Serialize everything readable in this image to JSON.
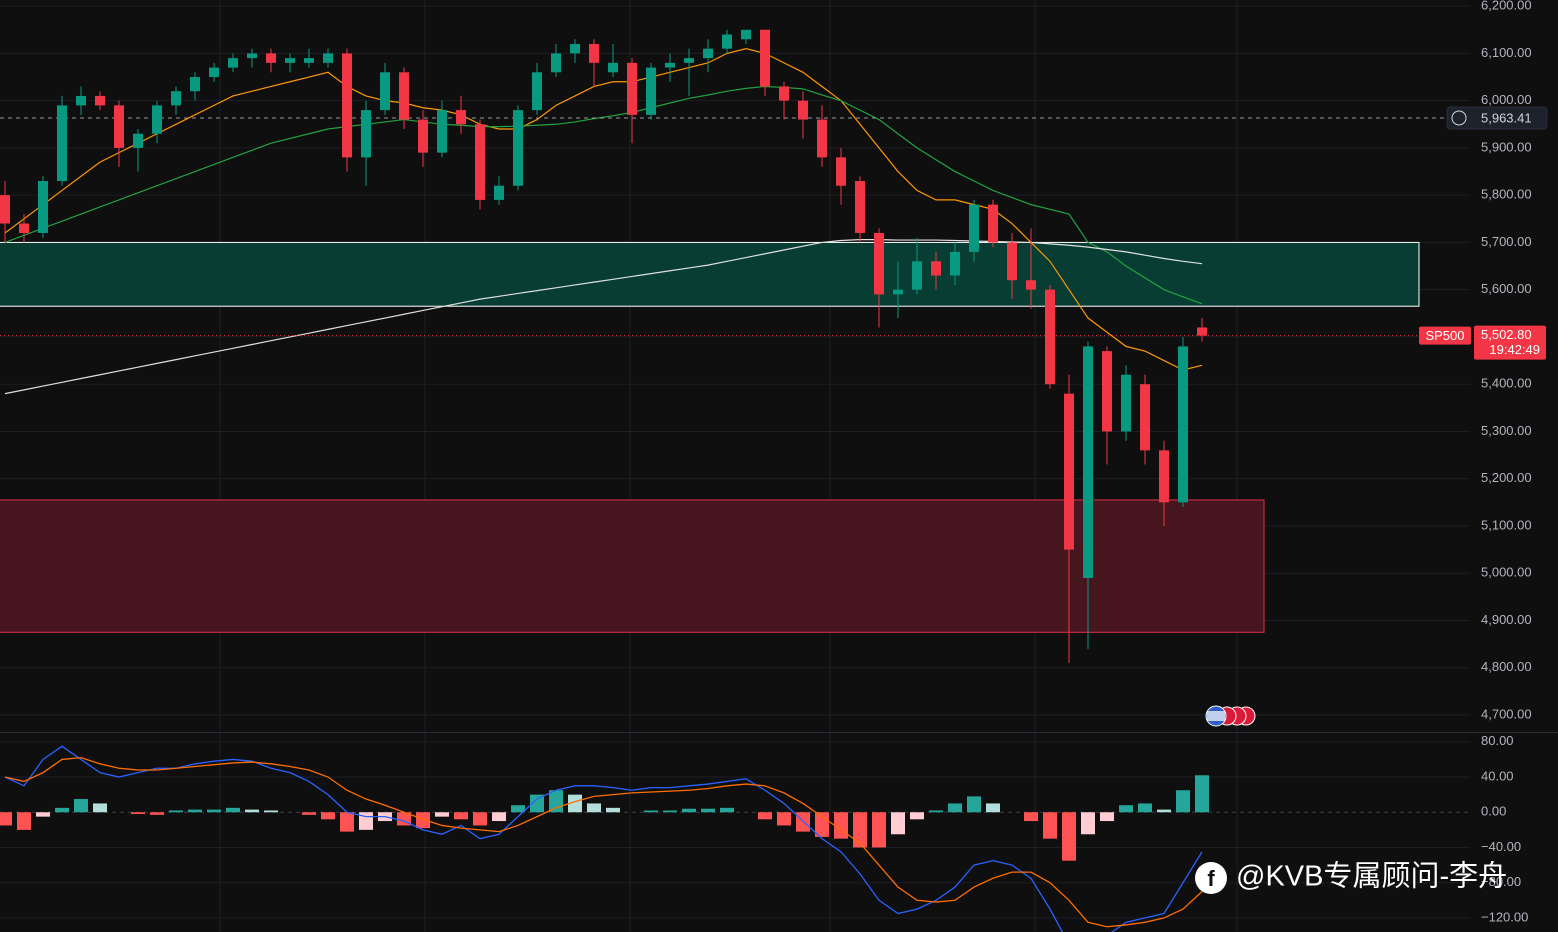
{
  "chart_data": {
    "type": "candlestick",
    "up_color": "#089981",
    "down_color": "#f23645",
    "candles": [
      [
        5800,
        5830,
        5700,
        5740
      ],
      [
        5740,
        5760,
        5700,
        5720
      ],
      [
        5720,
        5840,
        5710,
        5830
      ],
      [
        5830,
        6010,
        5820,
        5990
      ],
      [
        5990,
        6030,
        5970,
        6010
      ],
      [
        6010,
        6020,
        5980,
        5990
      ],
      [
        5990,
        6000,
        5860,
        5900
      ],
      [
        5900,
        5940,
        5850,
        5930
      ],
      [
        5930,
        6000,
        5910,
        5990
      ],
      [
        5990,
        6030,
        5970,
        6020
      ],
      [
        6020,
        6060,
        6000,
        6050
      ],
      [
        6050,
        6080,
        6040,
        6070
      ],
      [
        6070,
        6100,
        6060,
        6090
      ],
      [
        6090,
        6110,
        6070,
        6100
      ],
      [
        6100,
        6110,
        6060,
        6080
      ],
      [
        6080,
        6100,
        6060,
        6090
      ],
      [
        6080,
        6110,
        6070,
        6090
      ],
      [
        6080,
        6110,
        6070,
        6100
      ],
      [
        6100,
        6110,
        5850,
        5880
      ],
      [
        5880,
        6000,
        5820,
        5980
      ],
      [
        5980,
        6080,
        5970,
        6060
      ],
      [
        6060,
        6070,
        5940,
        5960
      ],
      [
        5960,
        5980,
        5860,
        5890
      ],
      [
        5890,
        6000,
        5880,
        5980
      ],
      [
        5980,
        6010,
        5930,
        5950
      ],
      [
        5950,
        5960,
        5770,
        5790
      ],
      [
        5790,
        5840,
        5780,
        5820
      ],
      [
        5820,
        5990,
        5810,
        5980
      ],
      [
        5980,
        6080,
        5970,
        6060
      ],
      [
        6060,
        6120,
        6050,
        6100
      ],
      [
        6100,
        6130,
        6080,
        6120
      ],
      [
        6120,
        6130,
        6030,
        6080
      ],
      [
        6060,
        6120,
        6050,
        6080
      ],
      [
        6080,
        6090,
        5910,
        5970
      ],
      [
        5970,
        6080,
        5960,
        6070
      ],
      [
        6070,
        6100,
        6040,
        6080
      ],
      [
        6080,
        6110,
        6010,
        6090
      ],
      [
        6090,
        6130,
        6060,
        6110
      ],
      [
        6110,
        6150,
        6100,
        6140
      ],
      [
        6130,
        6150,
        6120,
        6150
      ],
      [
        6150,
        6150,
        6010,
        6030
      ],
      [
        6030,
        6040,
        5960,
        6000
      ],
      [
        6000,
        6020,
        5920,
        5960
      ],
      [
        5960,
        5990,
        5860,
        5880
      ],
      [
        5880,
        5900,
        5780,
        5820
      ],
      [
        5830,
        5840,
        5700,
        5720
      ],
      [
        5720,
        5730,
        5520,
        5590
      ],
      [
        5590,
        5660,
        5540,
        5600
      ],
      [
        5600,
        5710,
        5590,
        5660
      ],
      [
        5660,
        5680,
        5600,
        5630
      ],
      [
        5630,
        5700,
        5610,
        5680
      ],
      [
        5680,
        5790,
        5660,
        5780
      ],
      [
        5780,
        5790,
        5690,
        5700
      ],
      [
        5700,
        5720,
        5580,
        5620
      ],
      [
        5620,
        5730,
        5560,
        5600
      ],
      [
        5600,
        5610,
        5390,
        5400
      ],
      [
        5380,
        5420,
        4810,
        5050
      ],
      [
        4990,
        5490,
        4840,
        5480
      ],
      [
        5470,
        5480,
        5230,
        5300
      ],
      [
        5300,
        5440,
        5280,
        5420
      ],
      [
        5400,
        5420,
        5230,
        5260
      ],
      [
        5260,
        5280,
        5100,
        5150
      ],
      [
        5150,
        5500,
        5140,
        5480
      ],
      [
        5520,
        5540,
        5490,
        5502.8
      ]
    ],
    "ma": [
      {
        "color": "#ff9800",
        "values": [
          5720,
          5750,
          5780,
          5810,
          5840,
          5870,
          5890,
          5910,
          5930,
          5950,
          5970,
          5990,
          6010,
          6020,
          6030,
          6040,
          6050,
          6060,
          6030,
          6010,
          6000,
          5995,
          5985,
          5980,
          5970,
          5950,
          5940,
          5940,
          5960,
          5990,
          6010,
          6030,
          6040,
          6040,
          6050,
          6060,
          6070,
          6080,
          6100,
          6110,
          6100,
          6080,
          6060,
          6030,
          6000,
          5950,
          5900,
          5850,
          5810,
          5790,
          5790,
          5780,
          5770,
          5740,
          5700,
          5660,
          5600,
          5540,
          5510,
          5480,
          5470,
          5450,
          5430,
          5440
        ]
      },
      {
        "color": "#22a340",
        "values": [
          5700,
          5715,
          5730,
          5745,
          5760,
          5775,
          5790,
          5805,
          5820,
          5835,
          5850,
          5865,
          5880,
          5895,
          5910,
          5920,
          5930,
          5940,
          5945,
          5950,
          5955,
          5960,
          5955,
          5950,
          5948,
          5945,
          5945,
          5946,
          5948,
          5950,
          5955,
          5962,
          5968,
          5975,
          5985,
          5995,
          6005,
          6012,
          6020,
          6026,
          6030,
          6028,
          6025,
          6012,
          6000,
          5980,
          5960,
          5930,
          5900,
          5875,
          5850,
          5830,
          5810,
          5795,
          5780,
          5770,
          5760,
          5700,
          5680,
          5650,
          5625,
          5600,
          5585,
          5570
        ]
      },
      {
        "color": "#e0e0e0",
        "values": [
          5380,
          5388,
          5396,
          5404,
          5412,
          5420,
          5428,
          5436,
          5444,
          5452,
          5460,
          5468,
          5476,
          5484,
          5492,
          5500,
          5508,
          5516,
          5524,
          5532,
          5540,
          5548,
          5556,
          5564,
          5572,
          5580,
          5586,
          5592,
          5598,
          5604,
          5610,
          5616,
          5622,
          5628,
          5634,
          5640,
          5646,
          5652,
          5660,
          5668,
          5676,
          5684,
          5692,
          5700,
          5704,
          5706,
          5706,
          5705,
          5705,
          5705,
          5704,
          5703,
          5702,
          5701,
          5700,
          5697,
          5694,
          5690,
          5685,
          5680,
          5673,
          5666,
          5660,
          5655
        ]
      }
    ],
    "ylim": [
      4664,
      6213
    ],
    "yticks": [
      {
        "value": 4700,
        "label": "4,700.00"
      },
      {
        "value": 4800,
        "label": "4,800.00"
      },
      {
        "value": 4900,
        "label": "4,900.00"
      },
      {
        "value": 5000,
        "label": "5,000.00"
      },
      {
        "value": 5100,
        "label": "5,100.00"
      },
      {
        "value": 5200,
        "label": "5,200.00"
      },
      {
        "value": 5300,
        "label": "5,300.00"
      },
      {
        "value": 5400,
        "label": "5,400.00"
      },
      {
        "value": 5500,
        "label": "5,500.00"
      },
      {
        "value": 5600,
        "label": "5,600.00"
      },
      {
        "value": 5700,
        "label": "5,700.00"
      },
      {
        "value": 5800,
        "label": "5,800.00"
      },
      {
        "value": 5900,
        "label": "5,900.00"
      },
      {
        "value": 6000,
        "label": "6,000.00"
      },
      {
        "value": 6100,
        "label": "6,100.00"
      },
      {
        "value": 6200,
        "label": "6,200.00"
      }
    ],
    "zones": [
      {
        "low": 5565,
        "high": 5700,
        "color": "#073d33",
        "border": "#ffffff"
      },
      {
        "low": 4875,
        "high": 5155,
        "color": "#46151e",
        "border": "#e0304a"
      }
    ],
    "marker_line": {
      "value": 5963.41,
      "label": "5,963.41"
    },
    "last_price": {
      "name": "SP500",
      "value": 5502.8,
      "label": "5,502.80",
      "time": "19:42:49",
      "color": "#f23645"
    },
    "macd": {
      "hist_colors": [
        "#26a69a",
        "#b2dfdb",
        "#ff5252",
        "#ffcdd2"
      ],
      "macd_color": "#2962ff",
      "signal_color": "#ff6d00",
      "hist": [
        -15,
        -20,
        -5,
        5,
        15,
        10,
        0,
        -2,
        -3,
        2,
        3,
        3,
        5,
        3,
        2,
        0,
        -3,
        -8,
        -22,
        -20,
        -10,
        -15,
        -18,
        -5,
        -8,
        -15,
        -10,
        8,
        20,
        25,
        20,
        10,
        5,
        0,
        2,
        2,
        4,
        4,
        5,
        0,
        -8,
        -15,
        -22,
        -28,
        -30,
        -40,
        -40,
        -25,
        -8,
        2,
        10,
        18,
        10,
        0,
        -10,
        -30,
        -55,
        -25,
        -10,
        8,
        10,
        3,
        25,
        42
      ],
      "macd_line": [
        40,
        30,
        60,
        75,
        60,
        45,
        40,
        45,
        50,
        50,
        55,
        58,
        60,
        58,
        50,
        45,
        35,
        20,
        0,
        -5,
        -5,
        -10,
        -20,
        -25,
        -15,
        -30,
        -25,
        -5,
        15,
        25,
        30,
        30,
        28,
        25,
        28,
        28,
        30,
        32,
        35,
        38,
        25,
        10,
        -10,
        -30,
        -45,
        -70,
        -100,
        -115,
        -110,
        -100,
        -85,
        -60,
        -55,
        -60,
        -75,
        -110,
        -150,
        -175,
        -140,
        -125,
        -120,
        -115,
        -80,
        -45
      ],
      "signal_line": [
        40,
        35,
        45,
        60,
        62,
        55,
        50,
        48,
        48,
        50,
        52,
        54,
        56,
        57,
        55,
        52,
        48,
        40,
        25,
        15,
        8,
        0,
        -8,
        -15,
        -18,
        -20,
        -22,
        -15,
        -5,
        5,
        12,
        18,
        20,
        22,
        23,
        24,
        25,
        27,
        30,
        32,
        30,
        22,
        10,
        -5,
        -20,
        -35,
        -60,
        -85,
        -100,
        -102,
        -100,
        -85,
        -75,
        -68,
        -68,
        -80,
        -100,
        -125,
        -130,
        -128,
        -125,
        -120,
        -110,
        -90
      ],
      "ylim": [
        -136,
        90
      ],
      "yticks": [
        {
          "value": 80,
          "label": "80.00"
        },
        {
          "value": 40,
          "label": "40.00"
        },
        {
          "value": 0,
          "label": "0.00"
        },
        {
          "value": -40,
          "label": "−40.00"
        },
        {
          "value": -80,
          "label": "−80.00"
        },
        {
          "value": -120,
          "label": "−120.00"
        }
      ]
    },
    "watermark": "@KVB专属顾问-李舟"
  }
}
